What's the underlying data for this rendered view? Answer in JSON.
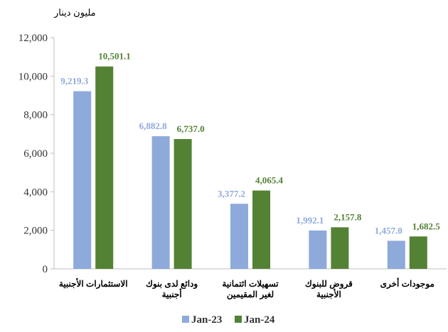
{
  "chart_data": {
    "type": "bar",
    "ylabel": "مليون دينار",
    "ylim": [
      0,
      12000
    ],
    "yticks": [
      "0",
      "2,000",
      "4,000",
      "6,000",
      "8,000",
      "10,000",
      "12,000"
    ],
    "categories": [
      [
        "الاستثمارات الأجنبية"
      ],
      [
        "ودائع لدى بنوك",
        "أجنبية"
      ],
      [
        "تسهيلات ائتمانية",
        "لغير المقيمين"
      ],
      [
        "قروض للبنوك",
        "الأجنبية"
      ],
      [
        "موجودات أخرى"
      ]
    ],
    "series": [
      {
        "name": "Jan-23",
        "color": "#8eaadb",
        "values": [
          9219.3,
          6882.8,
          3377.2,
          1992.1,
          1457.0
        ],
        "labels": [
          "9,219.3",
          "6,882.8",
          "3,377.2",
          "1,992.1",
          "1,457.0"
        ]
      },
      {
        "name": "Jan-24",
        "color": "#548235",
        "values": [
          10501.1,
          6737.0,
          4065.4,
          2157.8,
          1682.5
        ],
        "labels": [
          "10,501.1",
          "6,737.0",
          "4,065.4",
          "2,157.8",
          "1,682.5"
        ]
      }
    ],
    "grid": false,
    "legend": "bottom"
  }
}
